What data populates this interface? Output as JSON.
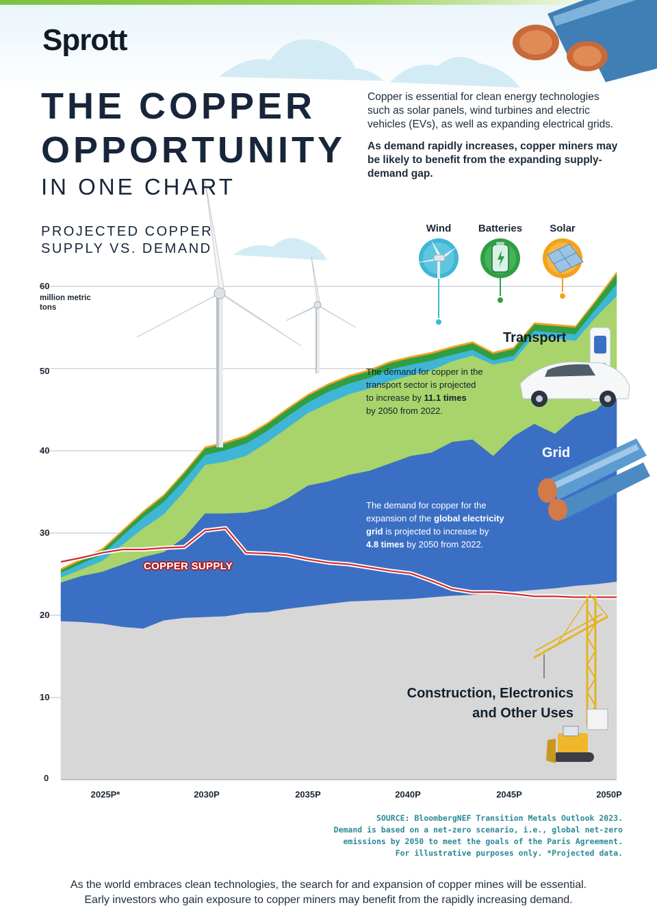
{
  "brand": "Sprott",
  "title": {
    "line1": "THE COPPER",
    "line2": "OPPORTUNITY",
    "line3": "IN ONE CHART"
  },
  "intro": {
    "text": "Copper is essential for clean energy technologies such as solar panels, wind turbines and electric vehicles (EVs), as well as expanding electrical grids.",
    "bold": "As demand rapidly increases, copper miners may be likely to benefit from the expanding supply-demand gap."
  },
  "chart_data": {
    "type": "area",
    "title": "PROJECTED COPPER SUPPLY VS. DEMAND",
    "ylabel": "million metric tons",
    "ylim": [
      0,
      60
    ],
    "y_ticks": [
      "60",
      "50",
      "40",
      "30",
      "20",
      "10",
      "0"
    ],
    "x_ticks": [
      "2025P*",
      "2030P",
      "2035P",
      "2040P",
      "2045P",
      "2050P"
    ],
    "x": [
      2023,
      2024,
      2025,
      2026,
      2027,
      2028,
      2029,
      2030,
      2031,
      2032,
      2033,
      2034,
      2035,
      2036,
      2037,
      2038,
      2039,
      2040,
      2041,
      2042,
      2043,
      2044,
      2045,
      2046,
      2047,
      2048,
      2049,
      2050
    ],
    "stacked": true,
    "series": [
      {
        "name": "Construction, Electronics and Other Uses",
        "color": "#d7d7d7",
        "values": [
          19.3,
          19.2,
          19.0,
          18.6,
          18.4,
          19.4,
          19.7,
          19.8,
          19.9,
          20.3,
          20.4,
          20.8,
          21.1,
          21.4,
          21.7,
          21.8,
          21.9,
          22.0,
          22.2,
          22.4,
          22.5,
          22.7,
          22.9,
          23.1,
          23.3,
          23.6,
          23.8,
          24.1
        ]
      },
      {
        "name": "Grid",
        "color": "#3b6fc4",
        "values": [
          4.7,
          5.6,
          6.3,
          7.6,
          8.7,
          8.3,
          9.8,
          12.6,
          12.5,
          12.2,
          12.6,
          13.4,
          14.7,
          14.9,
          15.4,
          15.8,
          16.6,
          17.4,
          17.6,
          18.7,
          18.9,
          16.7,
          18.9,
          20.2,
          18.8,
          20.6,
          21.2,
          23.3
        ]
      },
      {
        "name": "Transport",
        "color": "#a8d46b",
        "values": [
          0.6,
          0.8,
          1.3,
          2.4,
          3.5,
          4.6,
          5.6,
          5.9,
          6.3,
          6.9,
          8.0,
          8.6,
          8.8,
          9.5,
          9.8,
          10.0,
          10.0,
          9.8,
          10.0,
          9.8,
          10.2,
          11.1,
          9.2,
          10.7,
          11.6,
          9.2,
          11.3,
          11.4
        ]
      },
      {
        "name": "Wind",
        "color": "#3fb6d6",
        "values": [
          0.6,
          0.7,
          0.8,
          1.1,
          1.3,
          1.5,
          1.4,
          1.2,
          1.4,
          1.5,
          1.4,
          1.4,
          1.3,
          1.4,
          1.3,
          1.3,
          1.4,
          1.3,
          1.2,
          0.8,
          0.7,
          0.5,
          0.6,
          0.6,
          0.7,
          0.8,
          1.0,
          1.5
        ]
      },
      {
        "name": "Batteries",
        "color": "#2f9e44",
        "values": [
          0.3,
          0.4,
          0.5,
          0.5,
          0.6,
          0.7,
          0.8,
          0.8,
          0.8,
          0.8,
          0.8,
          0.8,
          0.8,
          0.8,
          0.8,
          0.8,
          0.8,
          0.8,
          0.8,
          0.8,
          0.8,
          0.8,
          0.8,
          0.8,
          0.8,
          0.8,
          0.9,
          1.2
        ]
      },
      {
        "name": "Solar",
        "color": "#f2a21e",
        "values": [
          0.2,
          0.2,
          0.2,
          0.2,
          0.2,
          0.2,
          0.2,
          0.2,
          0.2,
          0.2,
          0.2,
          0.2,
          0.2,
          0.2,
          0.2,
          0.2,
          0.2,
          0.2,
          0.2,
          0.2,
          0.2,
          0.2,
          0.2,
          0.2,
          0.2,
          0.2,
          0.2,
          0.3
        ]
      }
    ],
    "supply": {
      "name": "COPPER SUPPLY",
      "color": "#d22b2b",
      "values": [
        26.5,
        27.0,
        27.6,
        28.0,
        28.0,
        28.2,
        28.3,
        30.3,
        30.6,
        27.6,
        27.5,
        27.3,
        26.8,
        26.4,
        26.2,
        25.8,
        25.4,
        25.1,
        24.2,
        23.2,
        22.8,
        22.8,
        22.6,
        22.3,
        22.3,
        22.2,
        22.2,
        22.2
      ]
    }
  },
  "tech_labels": [
    "Wind",
    "Batteries",
    "Solar"
  ],
  "transport": {
    "title": "Transport",
    "line1": "The demand for copper in the",
    "line2": "transport sector is projected",
    "line3_pre": "to increase by ",
    "line3_bold": "11.1 times",
    "line4": "by 2050 from 2022."
  },
  "grid": {
    "title": "Grid",
    "line1": "The demand for copper for the",
    "line2_pre": "expansion of the ",
    "line2_bold": "global electricity",
    "line3_bold": "grid",
    "line3_post": " is projected to increase by",
    "line4_bold": "4.8 times",
    "line4_post": " by 2050 from 2022."
  },
  "construction": {
    "line1": "Construction, Electronics",
    "line2": "and Other Uses"
  },
  "source": {
    "line1": "SOURCE: BloombergNEF Transition Metals Outlook 2023.",
    "line2": "Demand is based on a net-zero scenario, i.e., global net-zero",
    "line3": "emissions by 2050 to meet the goals of the Paris Agreement.",
    "line4": "For illustrative purposes only. *Projected data."
  },
  "footer": {
    "line1": "As the world embraces clean technologies, the search for and expansion of copper mines will be essential.",
    "line2": "Early investors who gain exposure to copper miners may benefit from the rapidly increasing demand."
  }
}
